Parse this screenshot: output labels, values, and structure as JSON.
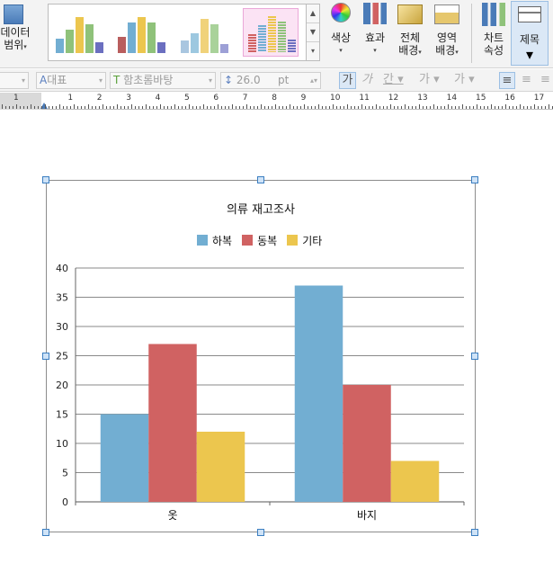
{
  "ribbon": {
    "data_range_label_1": "데이터",
    "data_range_label_2": "범위",
    "color_label": "색상",
    "effect_label": "효과",
    "bg_all_label_1": "전체",
    "bg_all_label_2": "배경",
    "bg_area_label_1": "영역",
    "bg_area_label_2": "배경",
    "chart_props_label_1": "차트",
    "chart_props_label_2": "속성",
    "title_label": "제목"
  },
  "format_bar": {
    "style_value": "대표",
    "font_value": "함초롬바탕",
    "size_value": "26.0",
    "unit_value": "pt"
  },
  "ruler": {
    "numbers": [
      "1",
      "1",
      "2",
      "3",
      "4",
      "5",
      "6",
      "7",
      "8",
      "9",
      "10",
      "11",
      "12",
      "13",
      "14",
      "15",
      "16",
      "17"
    ]
  },
  "chart_data": {
    "type": "bar",
    "title": "의류 재고조사",
    "categories": [
      "옷",
      "바지"
    ],
    "series": [
      {
        "name": "하복",
        "values": [
          15,
          37
        ],
        "color": "#72aed2"
      },
      {
        "name": "동복",
        "values": [
          27,
          20
        ],
        "color": "#d06262"
      },
      {
        "name": "기타",
        "values": [
          12,
          7
        ],
        "color": "#ecc64e"
      }
    ],
    "ylim": [
      0,
      40
    ],
    "yticks": [
      "0",
      "5",
      "10",
      "15",
      "20",
      "25",
      "30",
      "35",
      "40"
    ],
    "grid": true,
    "legend": "top"
  }
}
